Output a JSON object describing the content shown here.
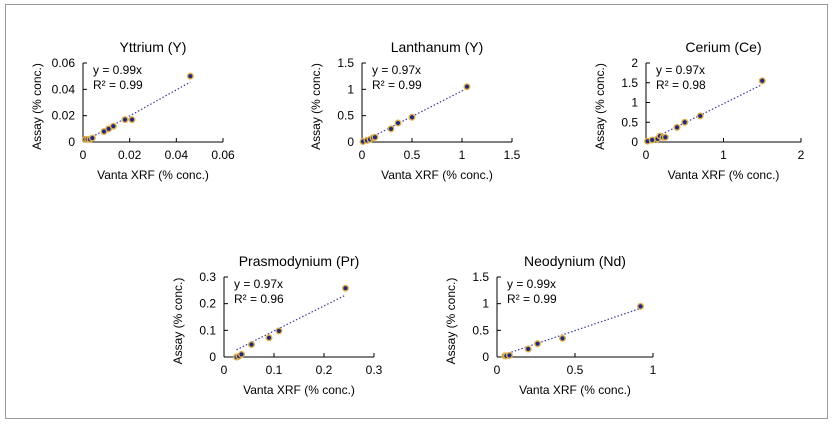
{
  "chart_data": [
    {
      "type": "scatter",
      "title": "Yttrium (Y)",
      "xlabel": "Vanta XRF (% conc.)",
      "ylabel": "Assay (% conc.)",
      "xlim": [
        0,
        0.06
      ],
      "ylim": [
        0,
        0.06
      ],
      "xticks": [
        "0",
        "0.02",
        "0.04",
        "0.06"
      ],
      "yticks": [
        "0",
        "0.02",
        "0.04",
        "0.06"
      ],
      "equation": "y = 0.99x",
      "r2": "R² = 0.99",
      "slope": 0.99,
      "trend_x": [
        0,
        0.046
      ],
      "points": [
        [
          0.001,
          0.002
        ],
        [
          0.002,
          0.002
        ],
        [
          0.003,
          0.002
        ],
        [
          0.004,
          0.003
        ],
        [
          0.009,
          0.008
        ],
        [
          0.011,
          0.01
        ],
        [
          0.013,
          0.012
        ],
        [
          0.018,
          0.017
        ],
        [
          0.021,
          0.017
        ],
        [
          0.046,
          0.05
        ]
      ]
    },
    {
      "type": "scatter",
      "title": "Lanthanum (Y)",
      "xlabel": "Vanta XRF (% conc.)",
      "ylabel": "Assay (% conc.)",
      "xlim": [
        0,
        1.5
      ],
      "ylim": [
        0,
        1.5
      ],
      "xticks": [
        "0",
        "0.5",
        "1",
        "1.5"
      ],
      "yticks": [
        "0",
        "0.5",
        "1",
        "1.5"
      ],
      "equation": "y = 0.97x",
      "r2": "R² = 0.99",
      "slope": 0.97,
      "trend_x": [
        0,
        1.05
      ],
      "points": [
        [
          0.01,
          0.01
        ],
        [
          0.05,
          0.03
        ],
        [
          0.08,
          0.05
        ],
        [
          0.11,
          0.08
        ],
        [
          0.13,
          0.09
        ],
        [
          0.29,
          0.25
        ],
        [
          0.36,
          0.36
        ],
        [
          0.5,
          0.47
        ],
        [
          1.05,
          1.05
        ]
      ]
    },
    {
      "type": "scatter",
      "title": "Cerium (Ce)",
      "xlabel": "Vanta XRF (% conc.)",
      "ylabel": "Assay (% conc.)",
      "xlim": [
        0,
        2
      ],
      "ylim": [
        0,
        2
      ],
      "xticks": [
        "0",
        "1",
        "2"
      ],
      "yticks": [
        "0",
        "0.5",
        "1",
        "1.5",
        "2"
      ],
      "equation": "y = 0.97x",
      "r2": "R² = 0.98",
      "slope": 0.97,
      "trend_x": [
        0,
        1.5
      ],
      "points": [
        [
          0.02,
          0.02
        ],
        [
          0.08,
          0.05
        ],
        [
          0.15,
          0.08
        ],
        [
          0.18,
          0.15
        ],
        [
          0.22,
          0.12
        ],
        [
          0.25,
          0.12
        ],
        [
          0.4,
          0.37
        ],
        [
          0.5,
          0.5
        ],
        [
          0.7,
          0.66
        ],
        [
          1.5,
          1.55
        ]
      ]
    },
    {
      "type": "scatter",
      "title": "Prasmodynium (Pr)",
      "xlabel": "Vanta XRF (% conc.)",
      "ylabel": "Assay (% conc.)",
      "xlim": [
        0,
        0.3
      ],
      "ylim": [
        0,
        0.3
      ],
      "xticks": [
        "0",
        "0.1",
        "0.2",
        "0.3"
      ],
      "yticks": [
        "0",
        "0.1",
        "0.2",
        "0.3"
      ],
      "equation": "y = 0.97x",
      "r2": "R² = 0.96",
      "slope": 0.97,
      "trend_x": [
        0.025,
        0.243
      ],
      "points": [
        [
          0.025,
          0.0
        ],
        [
          0.03,
          0.003
        ],
        [
          0.035,
          0.01
        ],
        [
          0.055,
          0.047
        ],
        [
          0.09,
          0.072
        ],
        [
          0.11,
          0.098
        ],
        [
          0.243,
          0.258
        ]
      ]
    },
    {
      "type": "scatter",
      "title": "Neodynium (Nd)",
      "xlabel": "Vanta XRF (% conc.)",
      "ylabel": "Assay (% conc.)",
      "xlim": [
        0,
        1
      ],
      "ylim": [
        0,
        1.5
      ],
      "xticks": [
        "0",
        "0.5",
        "1"
      ],
      "yticks": [
        "0",
        "0.5",
        "1",
        "1.5"
      ],
      "equation": "y = 0.99x",
      "r2": "R² = 0.99",
      "slope": 0.99,
      "trend_x": [
        0.05,
        0.92
      ],
      "points": [
        [
          0.05,
          0.02
        ],
        [
          0.06,
          0.02
        ],
        [
          0.08,
          0.03
        ],
        [
          0.2,
          0.15
        ],
        [
          0.26,
          0.25
        ],
        [
          0.42,
          0.35
        ],
        [
          0.92,
          0.95
        ]
      ]
    }
  ],
  "colors": {
    "marker_fill": "#1f2a7a",
    "marker_edge": "#e0b050",
    "trend": "#3a3aa0",
    "axis": "#000000",
    "frame": "#9a9a9a"
  }
}
